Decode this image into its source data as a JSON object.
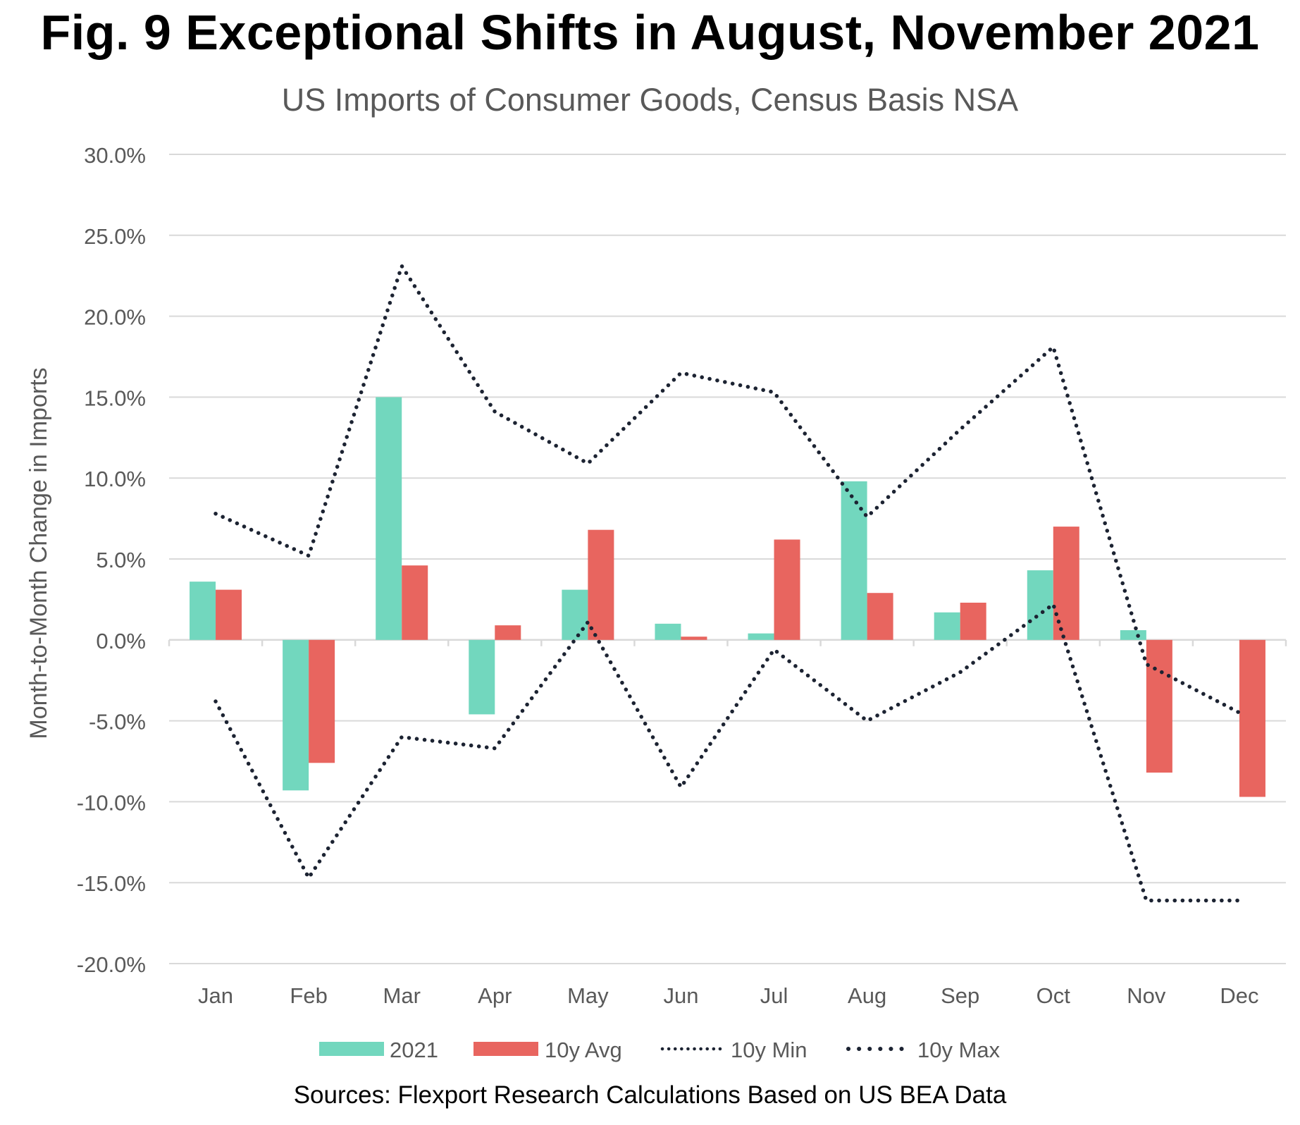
{
  "title": "Fig. 9 Exceptional Shifts in August, November 2021",
  "subtitle": "US Imports of Consumer Goods, Census Basis NSA",
  "source": "Sources: Flexport Research Calculations Based on US BEA Data",
  "colors": {
    "s2021": "#72d7be",
    "avg": "#e8655f",
    "line": "#1c2332",
    "grid": "#d9d9d9",
    "axis_text": "#595959"
  },
  "chart_data": {
    "type": "bar",
    "ylabel": "Month-to-Month Change in Imports",
    "xlabel": "",
    "ylim": [
      -20,
      30
    ],
    "yticks": [
      30,
      25,
      20,
      15,
      10,
      5,
      0,
      -5,
      -10,
      -15,
      -20
    ],
    "ytick_labels": [
      "30.0%",
      "25.0%",
      "20.0%",
      "15.0%",
      "10.0%",
      "5.0%",
      "0.0%",
      "-5.0%",
      "-10.0%",
      "-15.0%",
      "-20.0%"
    ],
    "categories": [
      "Jan",
      "Feb",
      "Mar",
      "Apr",
      "May",
      "Jun",
      "Jul",
      "Aug",
      "Sep",
      "Oct",
      "Nov",
      "Dec"
    ],
    "series": [
      {
        "name": "2021",
        "kind": "bar",
        "values": [
          3.6,
          -9.3,
          15.0,
          -4.6,
          3.1,
          1.0,
          0.4,
          9.8,
          1.7,
          4.3,
          0.6,
          null
        ]
      },
      {
        "name": "10y Avg",
        "kind": "bar",
        "values": [
          3.1,
          -7.6,
          4.6,
          0.9,
          6.8,
          0.2,
          6.2,
          2.9,
          2.3,
          7.0,
          -8.2,
          -9.7
        ]
      },
      {
        "name": "10y Min",
        "kind": "line",
        "values": [
          -3.8,
          -14.7,
          -6.0,
          -6.7,
          1.1,
          -9.1,
          -0.6,
          -5.0,
          -2.0,
          2.2,
          -16.1,
          -16.1
        ]
      },
      {
        "name": "10y Max",
        "kind": "line",
        "values": [
          7.8,
          5.2,
          23.1,
          14.1,
          10.9,
          16.5,
          15.3,
          7.6,
          13.0,
          18.1,
          -1.5,
          -4.5
        ]
      }
    ],
    "legend": [
      {
        "name": "2021",
        "symbol": "bar"
      },
      {
        "name": "10y Avg",
        "symbol": "bar"
      },
      {
        "name": "10y Min",
        "symbol": "line"
      },
      {
        "name": "10y Max",
        "symbol": "line"
      }
    ],
    "legend_position": "bottom",
    "grid": true
  }
}
